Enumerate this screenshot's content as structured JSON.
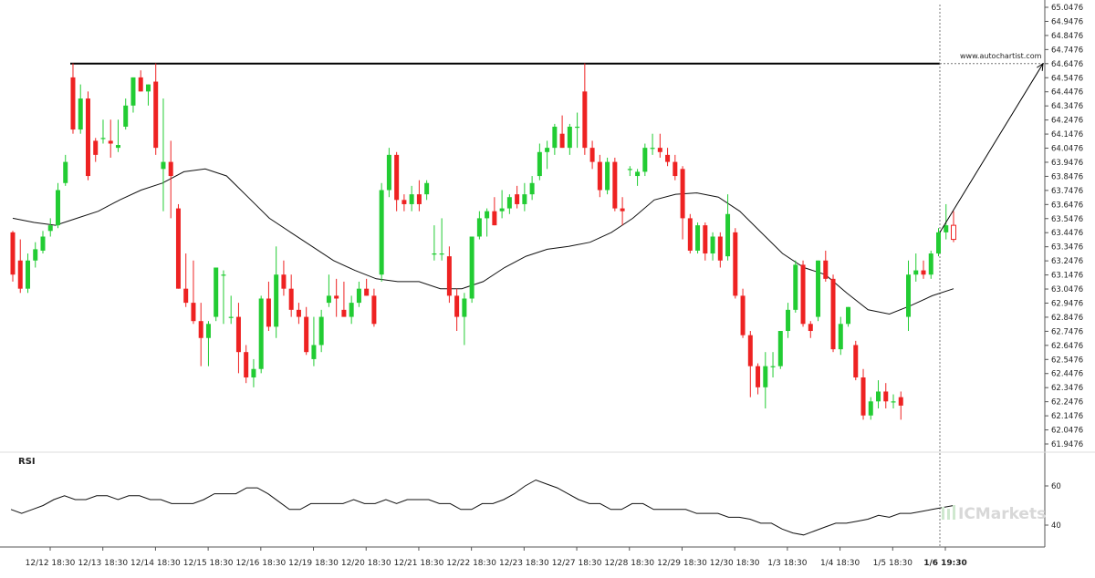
{
  "chart_data": [
    {
      "type": "candlestick",
      "y_ticks": [
        "65.0476",
        "64.9476",
        "64.8476",
        "64.7476",
        "64.6476",
        "64.5476",
        "64.4476",
        "64.3476",
        "64.2476",
        "64.1476",
        "64.0476",
        "63.9476",
        "63.8476",
        "63.7476",
        "63.6476",
        "63.5476",
        "63.4476",
        "63.3476",
        "63.2476",
        "63.1476",
        "63.0476",
        "62.9476",
        "62.8476",
        "62.7476",
        "62.6476",
        "62.5476",
        "62.4476",
        "62.3476",
        "62.2476",
        "62.1476",
        "62.0476",
        "61.9476"
      ],
      "ylim": [
        61.9476,
        65.0476
      ],
      "x_ticks": [
        "12/12 18:30",
        "12/13 18:30",
        "12/14 18:30",
        "12/15 18:30",
        "12/16 18:30",
        "12/19 18:30",
        "12/20 18:30",
        "12/21 18:30",
        "12/22 18:30",
        "12/23 18:30",
        "12/27 18:30",
        "12/28 18:30",
        "12/29 18:30",
        "12/30 18:30",
        "1/3 18:30",
        "1/4 18:30",
        "1/5 18:30",
        "1/6 19:30"
      ],
      "x_ticks_bold": "1/6 19:30",
      "resistance_level": 64.6476,
      "projection": {
        "from_price": 63.45,
        "to_price": 64.6476,
        "label": "www.autochartist.com"
      },
      "up_color": "#22cc33",
      "down_color": "#ee2222",
      "candles": [
        {
          "o": 63.45,
          "h": 63.46,
          "l": 63.1,
          "c": 63.15
        },
        {
          "o": 63.25,
          "h": 63.4,
          "l": 63.02,
          "c": 63.05
        },
        {
          "o": 63.05,
          "h": 63.3,
          "l": 63.02,
          "c": 63.25
        },
        {
          "o": 63.25,
          "h": 63.38,
          "l": 63.2,
          "c": 63.33
        },
        {
          "o": 63.32,
          "h": 63.46,
          "l": 63.3,
          "c": 63.42
        },
        {
          "o": 63.46,
          "h": 63.55,
          "l": 63.42,
          "c": 63.5
        },
        {
          "o": 63.5,
          "h": 63.8,
          "l": 63.48,
          "c": 63.75
        },
        {
          "o": 63.8,
          "h": 64.0,
          "l": 63.78,
          "c": 63.95
        },
        {
          "o": 64.55,
          "h": 64.65,
          "l": 64.15,
          "c": 64.18
        },
        {
          "o": 64.18,
          "h": 64.5,
          "l": 64.15,
          "c": 64.4
        },
        {
          "o": 64.4,
          "h": 64.45,
          "l": 63.82,
          "c": 63.85
        },
        {
          "o": 64.1,
          "h": 64.12,
          "l": 63.95,
          "c": 64.0
        },
        {
          "o": 64.12,
          "h": 64.25,
          "l": 64.08,
          "c": 64.12
        },
        {
          "o": 64.1,
          "h": 64.25,
          "l": 63.98,
          "c": 64.08
        },
        {
          "o": 64.05,
          "h": 64.25,
          "l": 64.02,
          "c": 64.07
        },
        {
          "o": 64.2,
          "h": 64.4,
          "l": 64.18,
          "c": 64.35
        },
        {
          "o": 64.35,
          "h": 64.55,
          "l": 64.3,
          "c": 64.55
        },
        {
          "o": 64.55,
          "h": 64.6,
          "l": 64.45,
          "c": 64.45
        },
        {
          "o": 64.45,
          "h": 64.5,
          "l": 64.35,
          "c": 64.5
        },
        {
          "o": 64.52,
          "h": 64.65,
          "l": 64.0,
          "c": 64.05
        },
        {
          "o": 63.9,
          "h": 64.4,
          "l": 63.6,
          "c": 63.95
        },
        {
          "o": 63.95,
          "h": 64.1,
          "l": 63.55,
          "c": 63.85
        },
        {
          "o": 63.62,
          "h": 63.65,
          "l": 63.05,
          "c": 63.05
        },
        {
          "o": 63.05,
          "h": 63.3,
          "l": 62.92,
          "c": 62.95
        },
        {
          "o": 62.95,
          "h": 63.25,
          "l": 62.8,
          "c": 62.82
        },
        {
          "o": 62.82,
          "h": 62.95,
          "l": 62.5,
          "c": 62.7
        },
        {
          "o": 62.7,
          "h": 62.82,
          "l": 62.5,
          "c": 62.8
        },
        {
          "o": 62.85,
          "h": 63.2,
          "l": 62.82,
          "c": 63.2
        },
        {
          "o": 63.15,
          "h": 63.18,
          "l": 62.8,
          "c": 63.15
        },
        {
          "o": 62.85,
          "h": 63.0,
          "l": 62.8,
          "c": 62.85
        },
        {
          "o": 62.85,
          "h": 62.95,
          "l": 62.45,
          "c": 62.6
        },
        {
          "o": 62.6,
          "h": 62.65,
          "l": 62.38,
          "c": 62.42
        },
        {
          "o": 62.42,
          "h": 62.55,
          "l": 62.35,
          "c": 62.48
        },
        {
          "o": 62.48,
          "h": 63.0,
          "l": 62.45,
          "c": 62.98
        },
        {
          "o": 62.98,
          "h": 63.1,
          "l": 62.75,
          "c": 62.78
        },
        {
          "o": 62.78,
          "h": 63.35,
          "l": 62.7,
          "c": 63.15
        },
        {
          "o": 63.15,
          "h": 63.25,
          "l": 63.0,
          "c": 63.05
        },
        {
          "o": 63.05,
          "h": 63.15,
          "l": 62.85,
          "c": 62.9
        },
        {
          "o": 62.9,
          "h": 62.95,
          "l": 62.8,
          "c": 62.85
        },
        {
          "o": 62.85,
          "h": 62.92,
          "l": 62.58,
          "c": 62.6
        },
        {
          "o": 62.55,
          "h": 62.85,
          "l": 62.5,
          "c": 62.65
        },
        {
          "o": 62.65,
          "h": 62.9,
          "l": 62.6,
          "c": 62.85
        },
        {
          "o": 62.95,
          "h": 63.15,
          "l": 62.92,
          "c": 63.0
        },
        {
          "o": 63.0,
          "h": 63.12,
          "l": 62.85,
          "c": 62.98
        },
        {
          "o": 62.9,
          "h": 63.1,
          "l": 62.85,
          "c": 62.85
        },
        {
          "o": 62.85,
          "h": 63.0,
          "l": 62.8,
          "c": 62.95
        },
        {
          "o": 62.95,
          "h": 63.1,
          "l": 62.92,
          "c": 63.05
        },
        {
          "o": 63.05,
          "h": 63.12,
          "l": 63.0,
          "c": 63.0
        },
        {
          "o": 63.0,
          "h": 63.05,
          "l": 62.78,
          "c": 62.8
        },
        {
          "o": 63.15,
          "h": 63.8,
          "l": 63.1,
          "c": 63.75
        },
        {
          "o": 63.75,
          "h": 64.05,
          "l": 63.7,
          "c": 64.0
        },
        {
          "o": 64.0,
          "h": 64.02,
          "l": 63.6,
          "c": 63.68
        },
        {
          "o": 63.68,
          "h": 63.72,
          "l": 63.6,
          "c": 63.65
        },
        {
          "o": 63.65,
          "h": 63.78,
          "l": 63.6,
          "c": 63.72
        },
        {
          "o": 63.72,
          "h": 63.82,
          "l": 63.6,
          "c": 63.65
        },
        {
          "o": 63.72,
          "h": 63.82,
          "l": 63.68,
          "c": 63.8
        },
        {
          "o": 63.3,
          "h": 63.5,
          "l": 63.25,
          "c": 63.3
        },
        {
          "o": 63.3,
          "h": 63.55,
          "l": 63.25,
          "c": 63.3
        },
        {
          "o": 63.28,
          "h": 63.35,
          "l": 62.95,
          "c": 63.0
        },
        {
          "o": 63.0,
          "h": 63.05,
          "l": 62.75,
          "c": 62.85
        },
        {
          "o": 62.85,
          "h": 63.02,
          "l": 62.65,
          "c": 62.98
        },
        {
          "o": 62.98,
          "h": 63.42,
          "l": 62.95,
          "c": 63.42
        },
        {
          "o": 63.42,
          "h": 63.6,
          "l": 63.4,
          "c": 63.55
        },
        {
          "o": 63.55,
          "h": 63.62,
          "l": 63.42,
          "c": 63.6
        },
        {
          "o": 63.6,
          "h": 63.7,
          "l": 63.5,
          "c": 63.5
        },
        {
          "o": 63.6,
          "h": 63.75,
          "l": 63.55,
          "c": 63.62
        },
        {
          "o": 63.62,
          "h": 63.72,
          "l": 63.58,
          "c": 63.7
        },
        {
          "o": 63.72,
          "h": 63.78,
          "l": 63.62,
          "c": 63.65
        },
        {
          "o": 63.65,
          "h": 63.8,
          "l": 63.6,
          "c": 63.72
        },
        {
          "o": 63.72,
          "h": 63.85,
          "l": 63.68,
          "c": 63.8
        },
        {
          "o": 63.85,
          "h": 64.08,
          "l": 63.82,
          "c": 64.02
        },
        {
          "o": 64.02,
          "h": 64.1,
          "l": 63.9,
          "c": 64.05
        },
        {
          "o": 64.05,
          "h": 64.22,
          "l": 64.0,
          "c": 64.2
        },
        {
          "o": 64.15,
          "h": 64.28,
          "l": 64.05,
          "c": 64.05
        },
        {
          "o": 64.05,
          "h": 64.22,
          "l": 64.0,
          "c": 64.2
        },
        {
          "o": 64.2,
          "h": 64.3,
          "l": 64.05,
          "c": 64.2
        },
        {
          "o": 64.45,
          "h": 64.65,
          "l": 64.0,
          "c": 64.05
        },
        {
          "o": 64.05,
          "h": 64.1,
          "l": 63.9,
          "c": 63.95
        },
        {
          "o": 63.95,
          "h": 64.0,
          "l": 63.7,
          "c": 63.75
        },
        {
          "o": 63.75,
          "h": 63.98,
          "l": 63.72,
          "c": 63.95
        },
        {
          "o": 63.95,
          "h": 63.98,
          "l": 63.6,
          "c": 63.62
        },
        {
          "o": 63.62,
          "h": 63.7,
          "l": 63.5,
          "c": 63.6
        },
        {
          "o": 63.9,
          "h": 63.92,
          "l": 63.85,
          "c": 63.9
        },
        {
          "o": 63.85,
          "h": 63.9,
          "l": 63.78,
          "c": 63.88
        },
        {
          "o": 63.88,
          "h": 64.08,
          "l": 63.85,
          "c": 64.05
        },
        {
          "o": 64.05,
          "h": 64.15,
          "l": 64.0,
          "c": 64.05
        },
        {
          "o": 64.05,
          "h": 64.15,
          "l": 63.98,
          "c": 64.02
        },
        {
          "o": 64.0,
          "h": 64.05,
          "l": 63.92,
          "c": 63.95
        },
        {
          "o": 63.95,
          "h": 64.0,
          "l": 63.82,
          "c": 63.85
        },
        {
          "o": 63.9,
          "h": 63.92,
          "l": 63.4,
          "c": 63.55
        },
        {
          "o": 63.55,
          "h": 63.58,
          "l": 63.3,
          "c": 63.32
        },
        {
          "o": 63.32,
          "h": 63.52,
          "l": 63.3,
          "c": 63.5
        },
        {
          "o": 63.5,
          "h": 63.52,
          "l": 63.25,
          "c": 63.3
        },
        {
          "o": 63.3,
          "h": 63.45,
          "l": 63.25,
          "c": 63.42
        },
        {
          "o": 63.42,
          "h": 63.45,
          "l": 63.2,
          "c": 63.25
        },
        {
          "o": 63.28,
          "h": 63.72,
          "l": 63.25,
          "c": 63.58
        },
        {
          "o": 63.45,
          "h": 63.48,
          "l": 62.98,
          "c": 63.0
        },
        {
          "o": 63.0,
          "h": 63.05,
          "l": 62.7,
          "c": 62.72
        },
        {
          "o": 62.72,
          "h": 62.75,
          "l": 62.28,
          "c": 62.5
        },
        {
          "o": 62.5,
          "h": 62.52,
          "l": 62.3,
          "c": 62.35
        },
        {
          "o": 62.35,
          "h": 62.6,
          "l": 62.2,
          "c": 62.5
        },
        {
          "o": 62.5,
          "h": 62.6,
          "l": 62.42,
          "c": 62.5
        },
        {
          "o": 62.5,
          "h": 62.75,
          "l": 62.48,
          "c": 62.75
        },
        {
          "o": 62.75,
          "h": 62.95,
          "l": 62.7,
          "c": 62.9
        },
        {
          "o": 62.9,
          "h": 63.25,
          "l": 62.88,
          "c": 63.22
        },
        {
          "o": 63.22,
          "h": 63.25,
          "l": 62.78,
          "c": 62.8
        },
        {
          "o": 62.8,
          "h": 62.82,
          "l": 62.7,
          "c": 62.75
        },
        {
          "o": 62.85,
          "h": 63.25,
          "l": 62.82,
          "c": 63.25
        },
        {
          "o": 63.25,
          "h": 63.32,
          "l": 63.1,
          "c": 63.12
        },
        {
          "o": 63.12,
          "h": 63.15,
          "l": 62.6,
          "c": 62.62
        },
        {
          "o": 62.62,
          "h": 62.85,
          "l": 62.58,
          "c": 62.8
        },
        {
          "o": 62.8,
          "h": 62.92,
          "l": 62.78,
          "c": 62.92
        },
        {
          "o": 62.65,
          "h": 62.68,
          "l": 62.4,
          "c": 62.42
        },
        {
          "o": 62.42,
          "h": 62.48,
          "l": 62.12,
          "c": 62.15
        },
        {
          "o": 62.15,
          "h": 62.28,
          "l": 62.12,
          "c": 62.25
        },
        {
          "o": 62.25,
          "h": 62.4,
          "l": 62.2,
          "c": 62.32
        },
        {
          "o": 62.32,
          "h": 62.38,
          "l": 62.2,
          "c": 62.25
        },
        {
          "o": 62.25,
          "h": 62.3,
          "l": 62.2,
          "c": 62.25
        },
        {
          "o": 62.28,
          "h": 62.32,
          "l": 62.12,
          "c": 62.22
        },
        {
          "o": 62.85,
          "h": 63.25,
          "l": 62.75,
          "c": 63.15
        },
        {
          "o": 63.15,
          "h": 63.3,
          "l": 63.1,
          "c": 63.18
        },
        {
          "o": 63.18,
          "h": 63.25,
          "l": 63.12,
          "c": 63.15
        },
        {
          "o": 63.15,
          "h": 63.32,
          "l": 63.12,
          "c": 63.3
        },
        {
          "o": 63.3,
          "h": 63.48,
          "l": 63.28,
          "c": 63.45
        },
        {
          "o": 63.45,
          "h": 63.65,
          "l": 63.4,
          "c": 63.5
        },
        {
          "o": 63.5,
          "h": 63.6,
          "l": 63.38,
          "c": 63.4
        }
      ],
      "ma_line": [
        63.55,
        63.52,
        63.5,
        63.55,
        63.6,
        63.68,
        63.75,
        63.8,
        63.88,
        63.9,
        63.85,
        63.7,
        63.55,
        63.45,
        63.35,
        63.25,
        63.18,
        63.12,
        63.1,
        63.1,
        63.05,
        63.05,
        63.1,
        63.2,
        63.28,
        63.33,
        63.35,
        63.38,
        63.45,
        63.55,
        63.68,
        63.72,
        63.73,
        63.7,
        63.6,
        63.45,
        63.3,
        63.2,
        63.15,
        63.02,
        62.9,
        62.87,
        62.93,
        63.0,
        63.05
      ]
    },
    {
      "type": "line",
      "title": "RSI",
      "y_ticks": [
        "60",
        "40"
      ],
      "ylim": [
        30,
        70
      ],
      "values": [
        48,
        46,
        48,
        50,
        53,
        55,
        53,
        53,
        55,
        55,
        53,
        55,
        55,
        53,
        53,
        51,
        51,
        51,
        53,
        56,
        56,
        56,
        59,
        59,
        56,
        52,
        48,
        48,
        51,
        51,
        51,
        51,
        53,
        51,
        51,
        53,
        51,
        53,
        53,
        53,
        51,
        51,
        48,
        48,
        51,
        51,
        53,
        56,
        60,
        63,
        61,
        59,
        56,
        53,
        51,
        51,
        48,
        48,
        51,
        51,
        48,
        48,
        48,
        48,
        46,
        46,
        46,
        44,
        44,
        43,
        41,
        41,
        38,
        36,
        35,
        37,
        39,
        41,
        41,
        42,
        43,
        45,
        44,
        46,
        46,
        47,
        48,
        49,
        50
      ]
    }
  ],
  "watermark": "ICMarkets"
}
